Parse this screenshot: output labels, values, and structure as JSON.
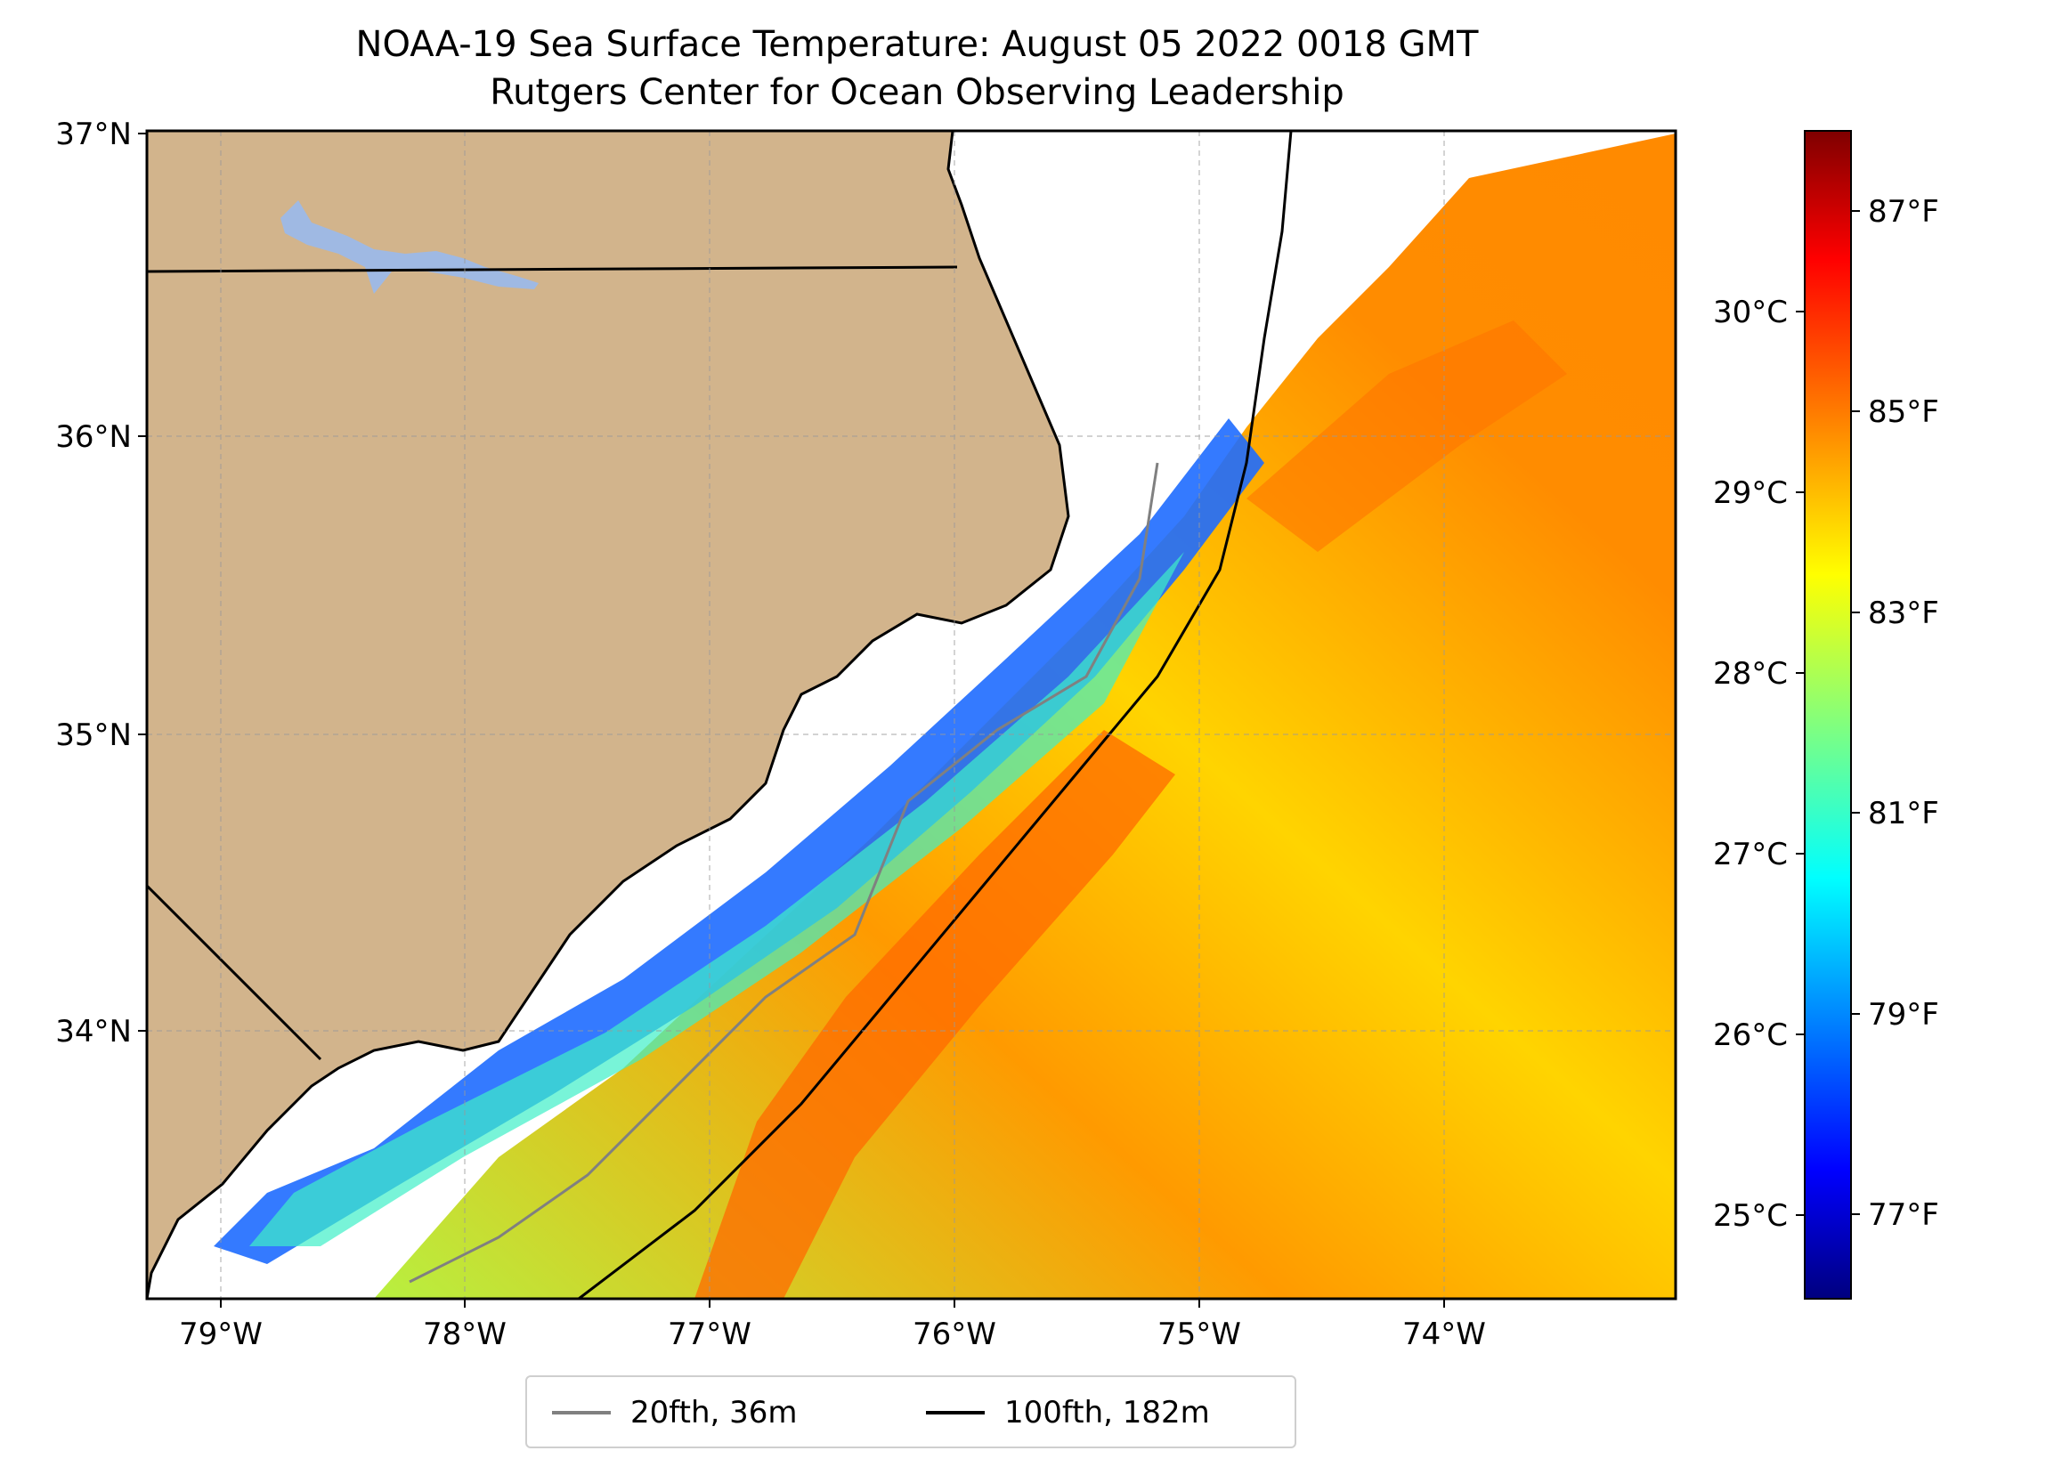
{
  "title_line1": "NOAA-19 Sea Surface Temperature: August 05 2022 0018 GMT",
  "title_line2": "Rutgers Center for Ocean Observing Leadership",
  "map": {
    "lon_range": [
      -79.3,
      -73.05
    ],
    "lat_range": [
      33.1,
      37.0
    ],
    "lat_ticks": [
      "37°N",
      "36°N",
      "35°N",
      "34°N"
    ],
    "lon_ticks": [
      "79°W",
      "78°W",
      "77°W",
      "76°W",
      "75°W",
      "74°W"
    ],
    "land_color": "#d2b48c",
    "lake_color": "#9fb9e3",
    "gridlines": true
  },
  "colorbar": {
    "colormap": "jet",
    "celsius_ticks": [
      "30°C",
      "29°C",
      "28°C",
      "27°C",
      "26°C",
      "25°C"
    ],
    "fahrenheit_ticks": [
      "87°F",
      "85°F",
      "83°F",
      "81°F",
      "79°F",
      "77°F"
    ]
  },
  "legend": [
    {
      "label": "20fth, 36m",
      "color": "#808080"
    },
    {
      "label": "100fth, 182m",
      "color": "#000000"
    }
  ]
}
